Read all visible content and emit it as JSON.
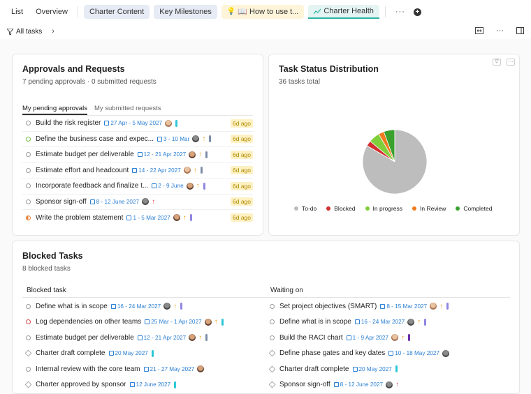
{
  "top_tabs": {
    "list": "List",
    "overview": "Overview",
    "charter_content": "Charter Content",
    "key_milestones": "Key Milestones",
    "how_to_use": "📖 How to use t...",
    "charter_health": "Charter Health",
    "more": "···"
  },
  "toolbar": {
    "filter": "All tasks"
  },
  "approvals": {
    "title": "Approvals and Requests",
    "subtitle": "7 pending approvals · 0 submitted requests",
    "tab_pending": "My pending approvals",
    "tab_submitted": "My submitted requests",
    "rows": [
      {
        "name": "Build the risk register",
        "dates": "27 Apr - 5 May 2027",
        "ago": "6d ago"
      },
      {
        "name": "Define the business case and expec...",
        "dates": "3 - 10 Mar",
        "ago": "6d ago"
      },
      {
        "name": "Estimate budget per deliverable",
        "dates": "12 - 21 Apr 2027",
        "ago": "6d ago"
      },
      {
        "name": "Estimate effort and headcount",
        "dates": "14 - 22 Apr 2027",
        "ago": "6d ago"
      },
      {
        "name": "Incorporate feedback and finalize t...",
        "dates": "2 - 9 June",
        "ago": "6d ago"
      },
      {
        "name": "Sponsor sign-off",
        "dates": "8 - 12 June 2027",
        "ago": "6d ago"
      },
      {
        "name": "Write the problem statement",
        "dates": "1 - 5 Mar 2027",
        "ago": "6d ago"
      }
    ]
  },
  "distribution": {
    "title": "Task Status Distribution",
    "subtitle": "36 tasks total",
    "legend": [
      "To-do",
      "Blocked",
      "In progress",
      "In Review",
      "Completed"
    ],
    "colors": {
      "todo": "#bdbdbd",
      "blocked": "#d32f2f",
      "in_progress": "#7fcf3a",
      "in_review": "#f07b1d",
      "completed": "#3aa12e"
    }
  },
  "chart_data": {
    "type": "pie",
    "title": "Task Status Distribution",
    "labels": [
      "To-do",
      "Blocked",
      "In progress",
      "In Review",
      "Completed"
    ],
    "values": [
      30,
      1,
      2,
      1,
      2
    ],
    "colors": [
      "#bdbdbd",
      "#d32f2f",
      "#7fcf3a",
      "#f07b1d",
      "#3aa12e"
    ],
    "legend_position": "bottom"
  },
  "blocked": {
    "title": "Blocked Tasks",
    "subtitle": "8 blocked tasks",
    "col_blocked": "Blocked task",
    "col_waiting": "Waiting on",
    "left": [
      {
        "name": "Define what is in scope",
        "dates": "16 - 24 Mar 2027"
      },
      {
        "name": "Log dependencies on other teams",
        "dates": "25 Mar - 1 Apr 2027"
      },
      {
        "name": "Estimate budget per deliverable",
        "dates": "12 - 21 Apr 2027"
      },
      {
        "name": "Charter draft complete",
        "dates": "20 May 2027"
      },
      {
        "name": "Internal review with the core team",
        "dates": "21 - 27 May 2027"
      },
      {
        "name": "Charter approved by sponsor",
        "dates": "12 June 2027"
      }
    ],
    "right": [
      {
        "name": "Set project objectives (SMART)",
        "dates": "8 - 15 Mar 2027"
      },
      {
        "name": "Define what is in scope",
        "dates": "16 - 24 Mar 2027"
      },
      {
        "name": "Build the RACI chart",
        "dates": "1 - 9 Apr 2027"
      },
      {
        "name": "Define phase gates and key dates",
        "dates": "10 - 18 May 2027"
      },
      {
        "name": "Charter draft complete",
        "dates": "20 May 2027"
      },
      {
        "name": "Sponsor sign-off",
        "dates": "8 - 12 June 2027"
      }
    ]
  }
}
